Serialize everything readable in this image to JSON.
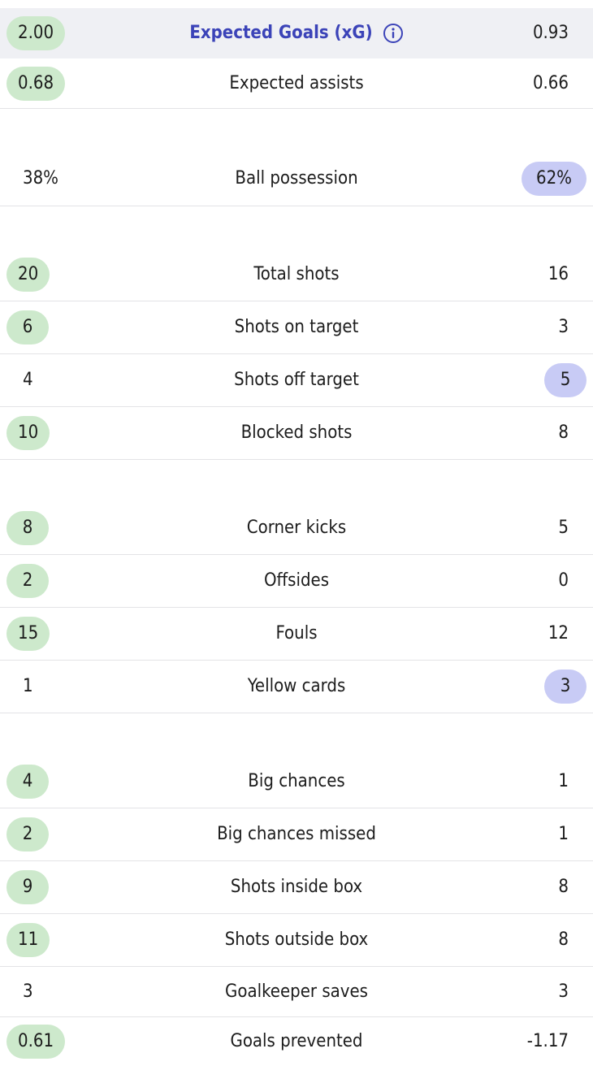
{
  "theme": {
    "home_highlight": "#cde9cc",
    "away_highlight": "#c8cbf5",
    "header_bg": "#eff0f4",
    "header_text": "#3b43b8"
  },
  "stats": [
    {
      "label": "Expected Goals (xG)",
      "home": "2.00",
      "away": "0.93",
      "better": "home",
      "header": true,
      "icon": "info-icon"
    },
    {
      "label": "Expected assists",
      "home": "0.68",
      "away": "0.66",
      "better": "home"
    },
    {
      "label": "Ball possession",
      "home": "38%",
      "away": "62%",
      "better": "away"
    },
    {
      "label": "Total shots",
      "home": "20",
      "away": "16",
      "better": "home"
    },
    {
      "label": "Shots on target",
      "home": "6",
      "away": "3",
      "better": "home"
    },
    {
      "label": "Shots off target",
      "home": "4",
      "away": "5",
      "better": "away"
    },
    {
      "label": "Blocked shots",
      "home": "10",
      "away": "8",
      "better": "home"
    },
    {
      "label": "Corner kicks",
      "home": "8",
      "away": "5",
      "better": "home"
    },
    {
      "label": "Offsides",
      "home": "2",
      "away": "0",
      "better": "home"
    },
    {
      "label": "Fouls",
      "home": "15",
      "away": "12",
      "better": "home"
    },
    {
      "label": "Yellow cards",
      "home": "1",
      "away": "3",
      "better": "away"
    },
    {
      "label": "Big chances",
      "home": "4",
      "away": "1",
      "better": "home"
    },
    {
      "label": "Big chances missed",
      "home": "2",
      "away": "1",
      "better": "home"
    },
    {
      "label": "Shots inside box",
      "home": "9",
      "away": "8",
      "better": "home"
    },
    {
      "label": "Shots outside box",
      "home": "11",
      "away": "8",
      "better": "home"
    },
    {
      "label": "Goalkeeper saves",
      "home": "3",
      "away": "3",
      "better": "none"
    },
    {
      "label": "Goals prevented",
      "home": "0.61",
      "away": "-1.17",
      "better": "home"
    }
  ]
}
